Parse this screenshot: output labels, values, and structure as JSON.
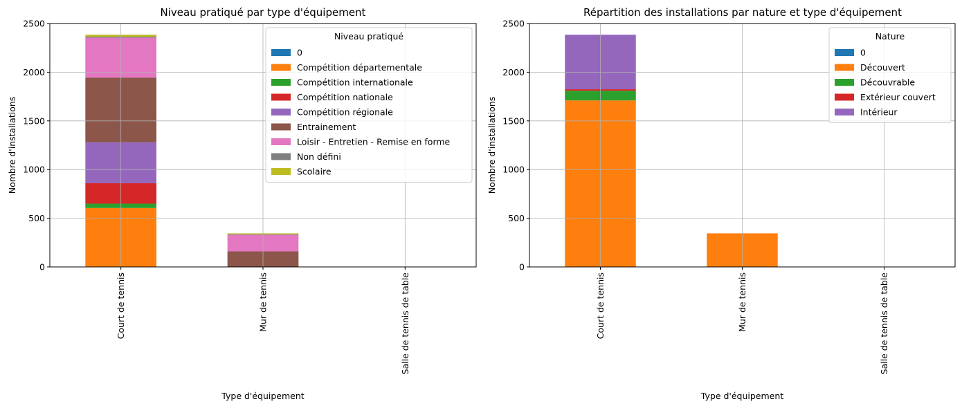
{
  "chart_data": [
    {
      "type": "bar",
      "stacked": true,
      "title": "Niveau pratiqué par type d'équipement",
      "xlabel": "Type d'équipement",
      "ylabel": "Nombre d'installations",
      "categories": [
        "Court de tennis",
        "Mur de tennis",
        "Salle de tennis de table"
      ],
      "ylim": [
        0,
        2500
      ],
      "yticks": [
        0,
        500,
        1000,
        1500,
        2000,
        2500
      ],
      "grid": true,
      "legend": {
        "title": "Niveau pratiqué",
        "placement": "top-right"
      },
      "series": [
        {
          "name": "0",
          "color": "#1f77b4",
          "values": [
            0,
            0,
            0
          ]
        },
        {
          "name": "Compétition départementale",
          "color": "#ff7f0e",
          "values": [
            605,
            0,
            0
          ]
        },
        {
          "name": "Compétition internationale",
          "color": "#2ca02c",
          "values": [
            45,
            0,
            0
          ]
        },
        {
          "name": "Compétition nationale",
          "color": "#d62728",
          "values": [
            210,
            0,
            0
          ]
        },
        {
          "name": "Compétition régionale",
          "color": "#9467bd",
          "values": [
            420,
            0,
            0
          ]
        },
        {
          "name": "Entrainement",
          "color": "#8c564b",
          "values": [
            665,
            160,
            0
          ]
        },
        {
          "name": "Loisir - Entretien - Remise en forme",
          "color": "#e377c2",
          "values": [
            410,
            170,
            0
          ]
        },
        {
          "name": "Non défini",
          "color": "#7f7f7f",
          "values": [
            10,
            5,
            0
          ]
        },
        {
          "name": "Scolaire",
          "color": "#bcbd22",
          "values": [
            20,
            10,
            0
          ]
        }
      ]
    },
    {
      "type": "bar",
      "stacked": true,
      "title": "Répartition des installations par nature et type d'équipement",
      "xlabel": "Type d'équipement",
      "ylabel": "Nombre d'installations",
      "categories": [
        "Court de tennis",
        "Mur de tennis",
        "Salle de tennis de table"
      ],
      "ylim": [
        0,
        2500
      ],
      "yticks": [
        0,
        500,
        1000,
        1500,
        2000,
        2500
      ],
      "grid": true,
      "legend": {
        "title": "Nature",
        "placement": "top-right"
      },
      "series": [
        {
          "name": "0",
          "color": "#1f77b4",
          "values": [
            0,
            0,
            0
          ]
        },
        {
          "name": "Découvert",
          "color": "#ff7f0e",
          "values": [
            1710,
            345,
            0
          ]
        },
        {
          "name": "Découvrable",
          "color": "#2ca02c",
          "values": [
            100,
            0,
            0
          ]
        },
        {
          "name": "Extérieur couvert",
          "color": "#d62728",
          "values": [
            15,
            0,
            0
          ]
        },
        {
          "name": "Intérieur",
          "color": "#9467bd",
          "values": [
            560,
            0,
            0
          ]
        }
      ]
    }
  ]
}
